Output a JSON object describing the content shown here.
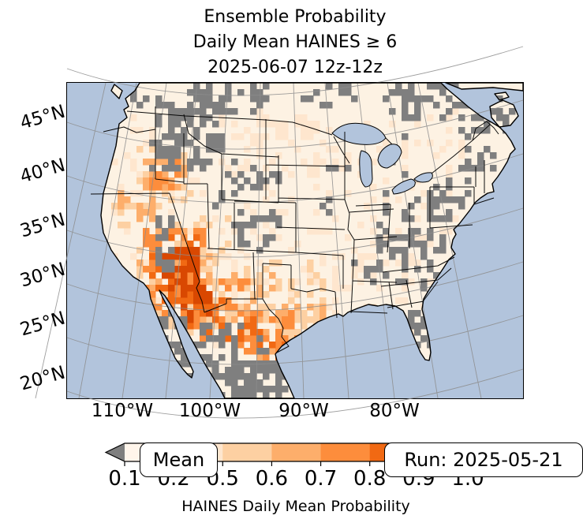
{
  "title": {
    "line1": "Ensemble Probability",
    "line2": "Daily Mean HAINES ≥ 6",
    "line3": "2025-06-07 12z-12z"
  },
  "map": {
    "lat_labels": [
      "45°N",
      "40°N",
      "35°N",
      "30°N",
      "25°N",
      "20°N"
    ],
    "lon_labels": [
      "110°W",
      "100°W",
      "90°W",
      "80°W"
    ],
    "mean_box_label": "Mean",
    "run_box_label": "Run: 2025-05-21",
    "colors": {
      "ocean": "#b2c4dc",
      "land_base": "#fdf2e3",
      "coastline": "#000000",
      "gridline": "#8d8d8d",
      "state_border": "#000000",
      "masked": "#7f7f7f"
    }
  },
  "colorbar": {
    "label": "HAINES Daily Mean Probability",
    "tick_labels": [
      "0.1",
      "0.2",
      "0.5",
      "0.6",
      "0.7",
      "0.8",
      "0.9",
      "1.0"
    ],
    "segment_colors": [
      "#fff5eb",
      "#fee6ce",
      "#fdd0a2",
      "#fdae6b",
      "#fd8d3c",
      "#f16913",
      "#d94801"
    ],
    "under_arrow_color": "#7f7f7f",
    "over_arrow_color": "#8c2d04"
  }
}
